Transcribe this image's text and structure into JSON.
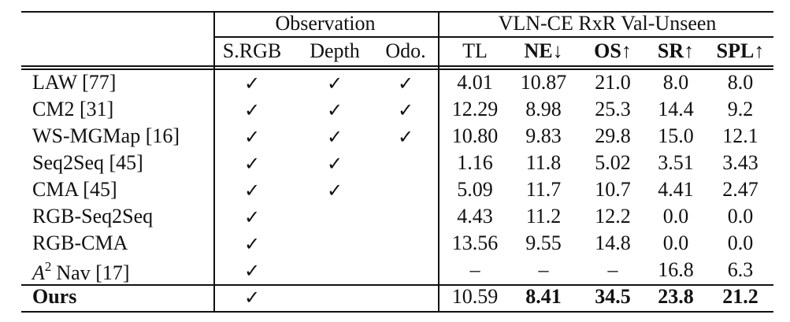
{
  "header": {
    "group1": "Observation",
    "group2": "VLN-CE RxR Val-Unseen",
    "columns": [
      {
        "label": "S.RGB",
        "arrow": "",
        "bold": false
      },
      {
        "label": "Depth",
        "arrow": "",
        "bold": false
      },
      {
        "label": "Odo.",
        "arrow": "",
        "bold": false
      },
      {
        "label": "TL",
        "arrow": "",
        "bold": false
      },
      {
        "label": "NE",
        "arrow": "↓",
        "bold": true
      },
      {
        "label": "OS",
        "arrow": "↑",
        "bold": true
      },
      {
        "label": "SR",
        "arrow": "↑",
        "bold": true
      },
      {
        "label": "SPL",
        "arrow": "↑",
        "bold": true
      }
    ]
  },
  "check_mark": "✓",
  "rows": [
    {
      "method": "LAW [77]",
      "srgb": "✓",
      "depth": "✓",
      "odo": "✓",
      "tl": "4.01",
      "ne": "10.87",
      "os": "21.0",
      "sr": "8.0",
      "spl": "8.0"
    },
    {
      "method": "CM2 [31]",
      "srgb": "✓",
      "depth": "✓",
      "odo": "✓",
      "tl": "12.29",
      "ne": "8.98",
      "os": "25.3",
      "sr": "14.4",
      "spl": "9.2"
    },
    {
      "method": "WS-MGMap [16]",
      "srgb": "✓",
      "depth": "✓",
      "odo": "✓",
      "tl": "10.80",
      "ne": "9.83",
      "os": "29.8",
      "sr": "15.0",
      "spl": "12.1"
    },
    {
      "method": "Seq2Seq [45]",
      "srgb": "✓",
      "depth": "✓",
      "odo": "",
      "tl": "1.16",
      "ne": "11.8",
      "os": "5.02",
      "sr": "3.51",
      "spl": "3.43"
    },
    {
      "method": "CMA [45]",
      "srgb": "✓",
      "depth": "✓",
      "odo": "",
      "tl": "5.09",
      "ne": "11.7",
      "os": "10.7",
      "sr": "4.41",
      "spl": "2.47"
    },
    {
      "method": "RGB-Seq2Seq",
      "srgb": "✓",
      "depth": "",
      "odo": "",
      "tl": "4.43",
      "ne": "11.2",
      "os": "12.2",
      "sr": "0.0",
      "spl": "0.0"
    },
    {
      "method": "RGB-CMA",
      "srgb": "✓",
      "depth": "",
      "odo": "",
      "tl": "13.56",
      "ne": "9.55",
      "os": "14.8",
      "sr": "0.0",
      "spl": "0.0"
    },
    {
      "method_prefix": "A",
      "method_sup": "2",
      "method_suffix": "Nav [17]",
      "srgb": "✓",
      "depth": "",
      "odo": "",
      "tl": "–",
      "ne": "–",
      "os": "–",
      "sr": "16.8",
      "spl": "6.3"
    },
    {
      "method": "Ours",
      "srgb": "✓",
      "depth": "",
      "odo": "",
      "tl": "10.59",
      "ne": "8.41",
      "os": "34.5",
      "sr": "23.8",
      "spl": "21.2"
    }
  ]
}
